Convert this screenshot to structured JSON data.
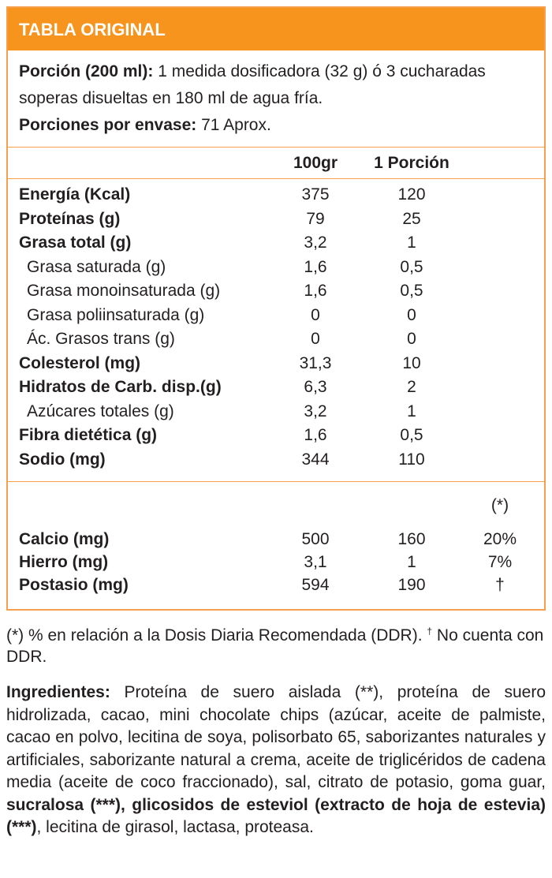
{
  "header": {
    "title": "TABLA ORIGINAL"
  },
  "serving": {
    "portion_label": "Porción (200 ml):",
    "portion_text": "1 medida dosificadora (32 g) ó 3 cucharadas soperas disueltas en 180 ml de agua fría.",
    "servings_label": "Porciones por envase:",
    "servings_text": "71 Aprox."
  },
  "table": {
    "columns": [
      "100gr",
      "1 Porción"
    ],
    "rows": [
      {
        "label": "Energía (Kcal)",
        "values": [
          "375",
          "120"
        ]
      },
      {
        "label": "Proteínas (g)",
        "values": [
          "79",
          "25"
        ]
      },
      {
        "label": "Grasa total (g)",
        "values": [
          "3,2",
          "1"
        ],
        "sub": [
          {
            "label": "Grasa saturada (g)",
            "values": [
              "1,6",
              "0,5"
            ]
          },
          {
            "label": "Grasa monoinsaturada (g)",
            "values": [
              "1,6",
              "0,5"
            ]
          },
          {
            "label": "Grasa poliinsaturada (g)",
            "values": [
              "0",
              "0"
            ]
          },
          {
            "label": "Ác. Grasos trans (g)",
            "values": [
              "0",
              "0"
            ]
          }
        ]
      },
      {
        "label": "Colesterol (mg)",
        "values": [
          "31,3",
          "10"
        ]
      },
      {
        "label": "Hidratos de Carb. disp.(g)",
        "values": [
          "6,3",
          "2"
        ],
        "sub": [
          {
            "label": "Azúcares totales (g)",
            "values": [
              "3,2",
              "1"
            ]
          }
        ]
      },
      {
        "label": "Fibra dietética (g)",
        "values": [
          "1,6",
          "0,5"
        ]
      },
      {
        "label": "Sodio (mg)",
        "values": [
          "344",
          "110"
        ]
      }
    ]
  },
  "minerals": {
    "ddr_header": "(*)",
    "rows": [
      {
        "label": "Calcio (mg)",
        "values": [
          "500",
          "160",
          "20%"
        ]
      },
      {
        "label": "Hierro (mg)",
        "values": [
          "3,1",
          "1",
          "7%"
        ]
      },
      {
        "label": "Postasio (mg)",
        "values": [
          "594",
          "190",
          "†"
        ]
      }
    ]
  },
  "footnote": {
    "text": "(*) % en relación a la Dosis Diaria Recomendada (DDR).",
    "mark": "†",
    "text_after": "No cuenta con DDR."
  },
  "ingredients": {
    "label": "Ingredientes:",
    "text": "Proteína de suero aislada (**), proteína de suero hidrolizada, cacao, mini chocolate chips (azúcar, aceite de palmiste, cacao en polvo, lecitina de soya,  polisorbato 65, saborizantes naturales y artificiales, saborizante natural a crema, aceite de triglicéridos de cadena media (aceite de coco fraccionado), sal, citrato de potasio, goma guar,",
    "bold_text": "sucralosa (***), glicosidos de esteviol (extracto de hoja de estevia) (***)",
    "text_after": ", lecitina de girasol, lactasa, proteasa."
  }
}
